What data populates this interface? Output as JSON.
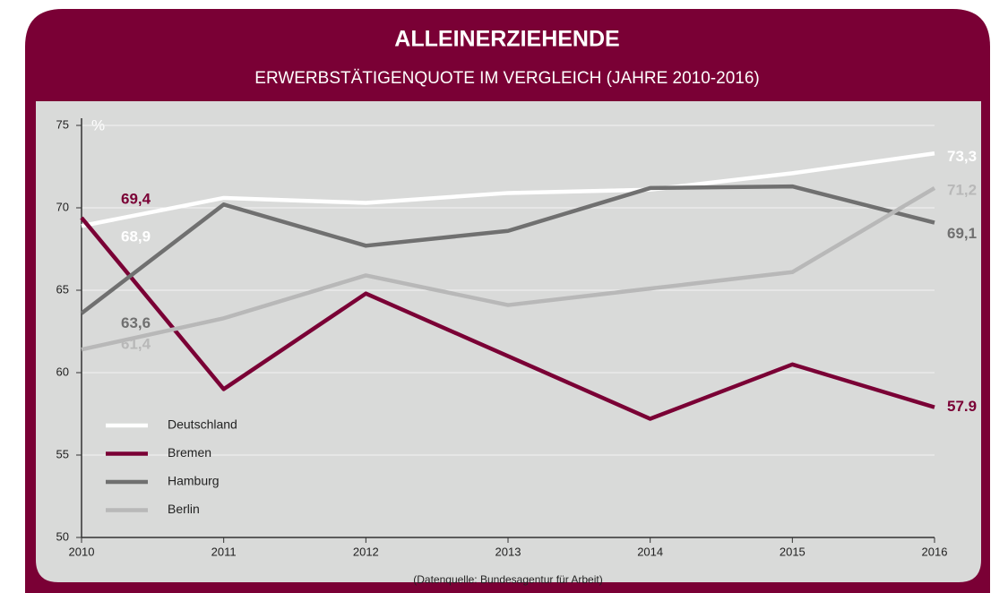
{
  "chart_data": {
    "type": "line",
    "title": "ALLEINERZIEHENDE",
    "subtitle": "ERWERBSTÄTIGENQUOTE IM VERGLEICH  (JAHRE 2010-2016)",
    "ylabel": "%",
    "source": "(Datenquelle: Bundesagentur für Arbeit)",
    "categories": [
      "2010",
      "2011",
      "2012",
      "2013",
      "2014",
      "2015",
      "2016"
    ],
    "ylim": [
      50,
      75
    ],
    "yticks": [
      50,
      55,
      60,
      65,
      70,
      75
    ],
    "grid": true,
    "legend": "lower left",
    "series": [
      {
        "name": "Deutschland",
        "color": "#ffffff",
        "values": [
          68.9,
          70.6,
          70.3,
          70.9,
          71.1,
          72.1,
          73.3
        ],
        "value_labels": [
          "68,9",
          null,
          null,
          null,
          null,
          null,
          "73,3"
        ]
      },
      {
        "name": "Bremen",
        "color": "#7a0035",
        "values": [
          69.4,
          59.0,
          64.8,
          61.0,
          57.2,
          60.5,
          57.9
        ],
        "value_labels": [
          "69,4",
          null,
          null,
          null,
          null,
          null,
          "57.9"
        ]
      },
      {
        "name": "Hamburg",
        "color": "#707070",
        "values": [
          63.6,
          70.2,
          67.7,
          68.6,
          71.2,
          71.3,
          69.1
        ],
        "value_labels": [
          "63,6",
          null,
          null,
          null,
          null,
          null,
          "69,1"
        ]
      },
      {
        "name": "Berlin",
        "color": "#b8b8b8",
        "values": [
          61.4,
          63.3,
          65.9,
          64.1,
          65.1,
          66.1,
          71.2
        ],
        "value_labels": [
          "61,4",
          null,
          null,
          null,
          null,
          null,
          "71,2"
        ]
      }
    ]
  }
}
